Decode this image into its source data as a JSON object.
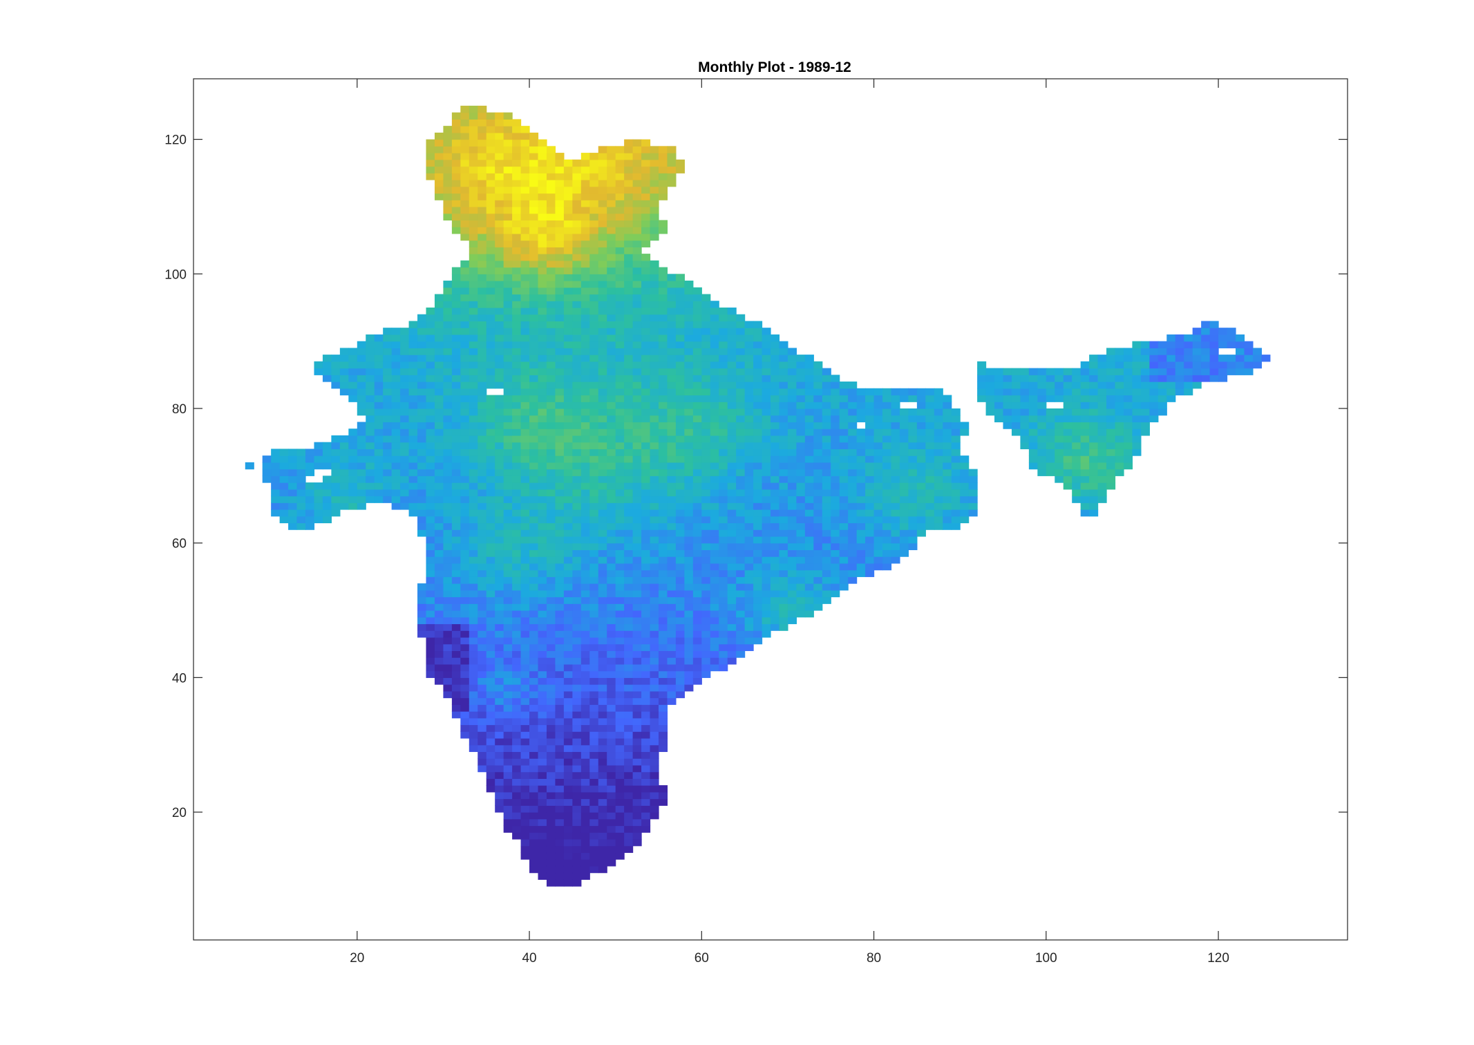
{
  "chart_data": {
    "type": "heatmap",
    "title": "Monthly Plot - 1989-12",
    "xlabel": "",
    "ylabel": "",
    "xlim": [
      1,
      135
    ],
    "ylim": [
      1,
      129
    ],
    "xticks": [
      20,
      40,
      60,
      80,
      100,
      120
    ],
    "yticks": [
      20,
      40,
      60,
      80,
      100,
      120
    ],
    "grid": false,
    "colormap": "parula",
    "colormap_colors": [
      "#3e26a8",
      "#4367fd",
      "#1caadf",
      "#2dc09e",
      "#81cc59",
      "#e1b830",
      "#f9fb15"
    ],
    "missing_color": "#ffffff",
    "region": "India",
    "cell_size": 1,
    "value_range": [
      0,
      1
    ]
  }
}
